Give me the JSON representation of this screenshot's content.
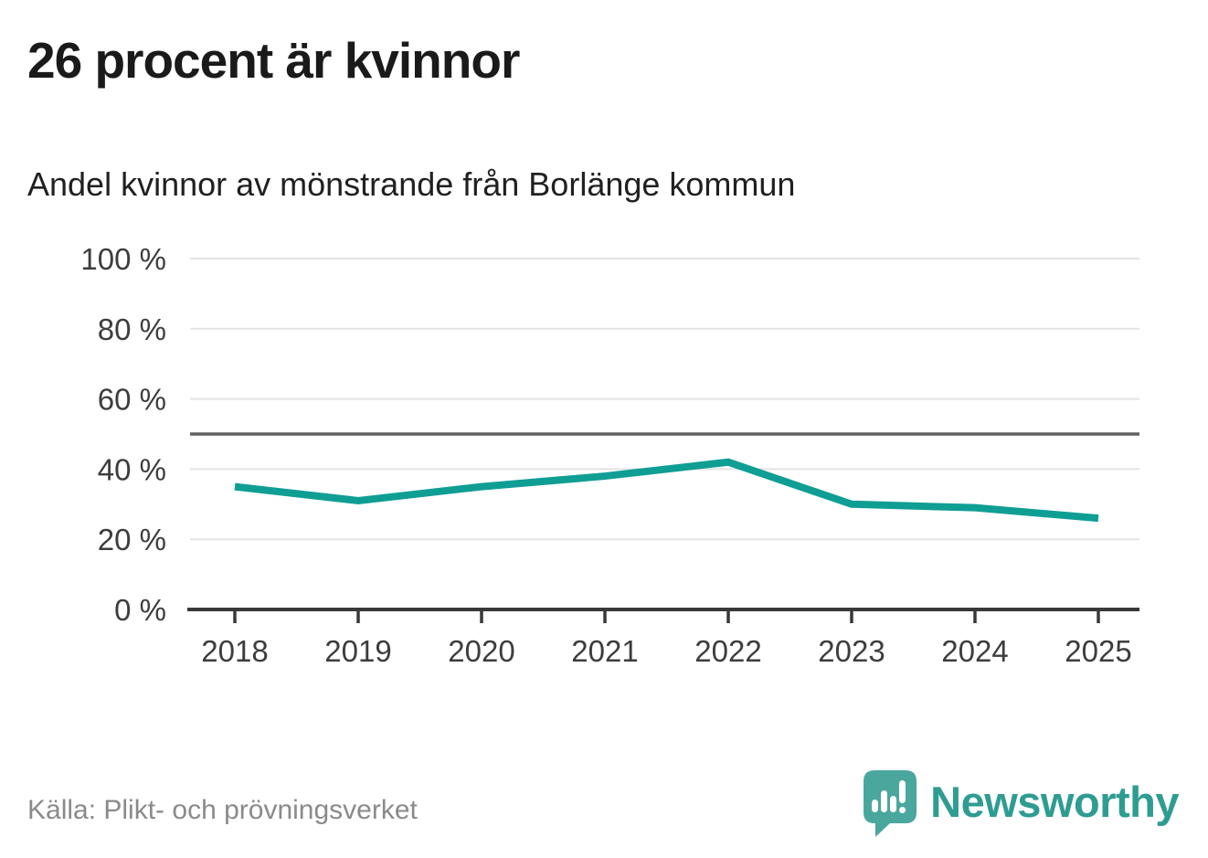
{
  "chart_data": {
    "type": "line",
    "title": "26 procent är kvinnor",
    "subtitle": "Andel kvinnor av mönstrande från Borlänge kommun",
    "x": [
      "2018",
      "2019",
      "2020",
      "2021",
      "2022",
      "2023",
      "2024",
      "2025"
    ],
    "values": [
      35,
      31,
      35,
      38,
      42,
      30,
      29,
      26
    ],
    "ylim": [
      0,
      100
    ],
    "yticks": [
      0,
      20,
      40,
      60,
      80,
      100
    ],
    "ytick_suffix": " %",
    "reference_line_y": 50,
    "line_color": "#0f9e94",
    "grid": true,
    "legend": "none"
  },
  "footer": {
    "source": "Källa: Plikt- och prövningsverket"
  },
  "brand": {
    "name": "Newsworthy",
    "bubble_color": "#4aa79d",
    "text_color": "#2f9c92"
  }
}
